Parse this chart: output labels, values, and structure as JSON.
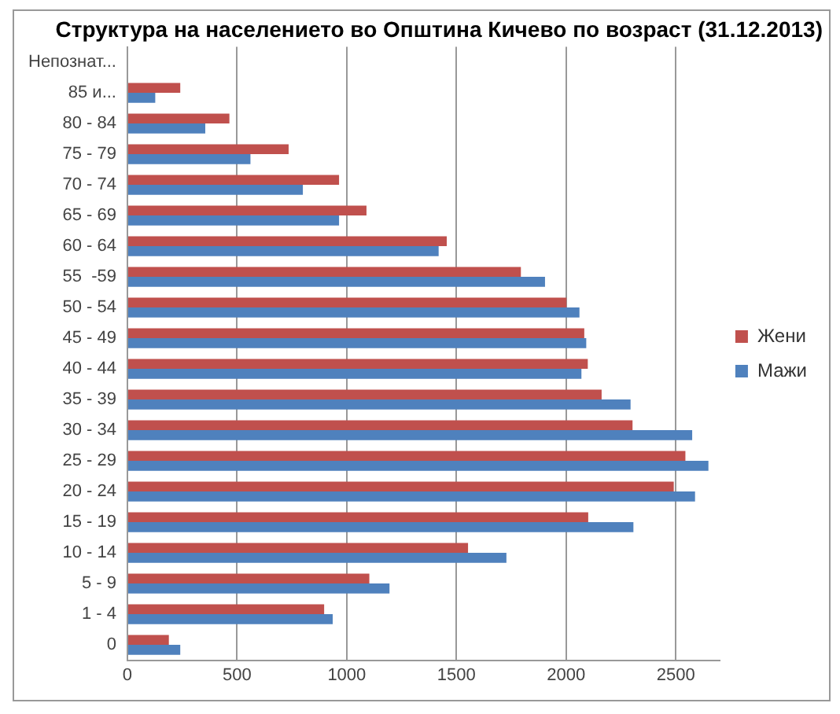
{
  "chart_data": {
    "type": "bar",
    "orientation": "horizontal",
    "title": "Структура на населението во Општина Кичево по возраст (31.12.2013)",
    "categories": [
      "Непознат...",
      "85 и...",
      "80 - 84",
      "75 - 79",
      "70 - 74",
      "65 - 69",
      "60 - 64",
      "55  -59",
      "50 - 54",
      "45 - 49",
      "40 - 44",
      "35 - 39",
      "30 - 34",
      "25 - 29",
      "20 - 24",
      "15 - 19",
      "10 - 14",
      "5 - 9",
      "1 - 4",
      "0"
    ],
    "series": [
      {
        "name": "Жени",
        "color": "#c0504d",
        "values": [
          0,
          241,
          465,
          735,
          965,
          1090,
          1456,
          1794,
          2002,
          2083,
          2099,
          2162,
          2303,
          2544,
          2491,
          2101,
          1553,
          1103,
          897,
          189
        ]
      },
      {
        "name": "Мажи",
        "color": "#4f81bd",
        "values": [
          0,
          127,
          355,
          561,
          800,
          965,
          1419,
          1904,
          2061,
          2092,
          2070,
          2294,
          2575,
          2649,
          2588,
          2307,
          1728,
          1195,
          936,
          241
        ]
      }
    ],
    "xlim": [
      0,
      2700
    ],
    "xticks": [
      0,
      500,
      1000,
      1500,
      2000,
      2500
    ],
    "grid": "x",
    "legend": "top right"
  }
}
